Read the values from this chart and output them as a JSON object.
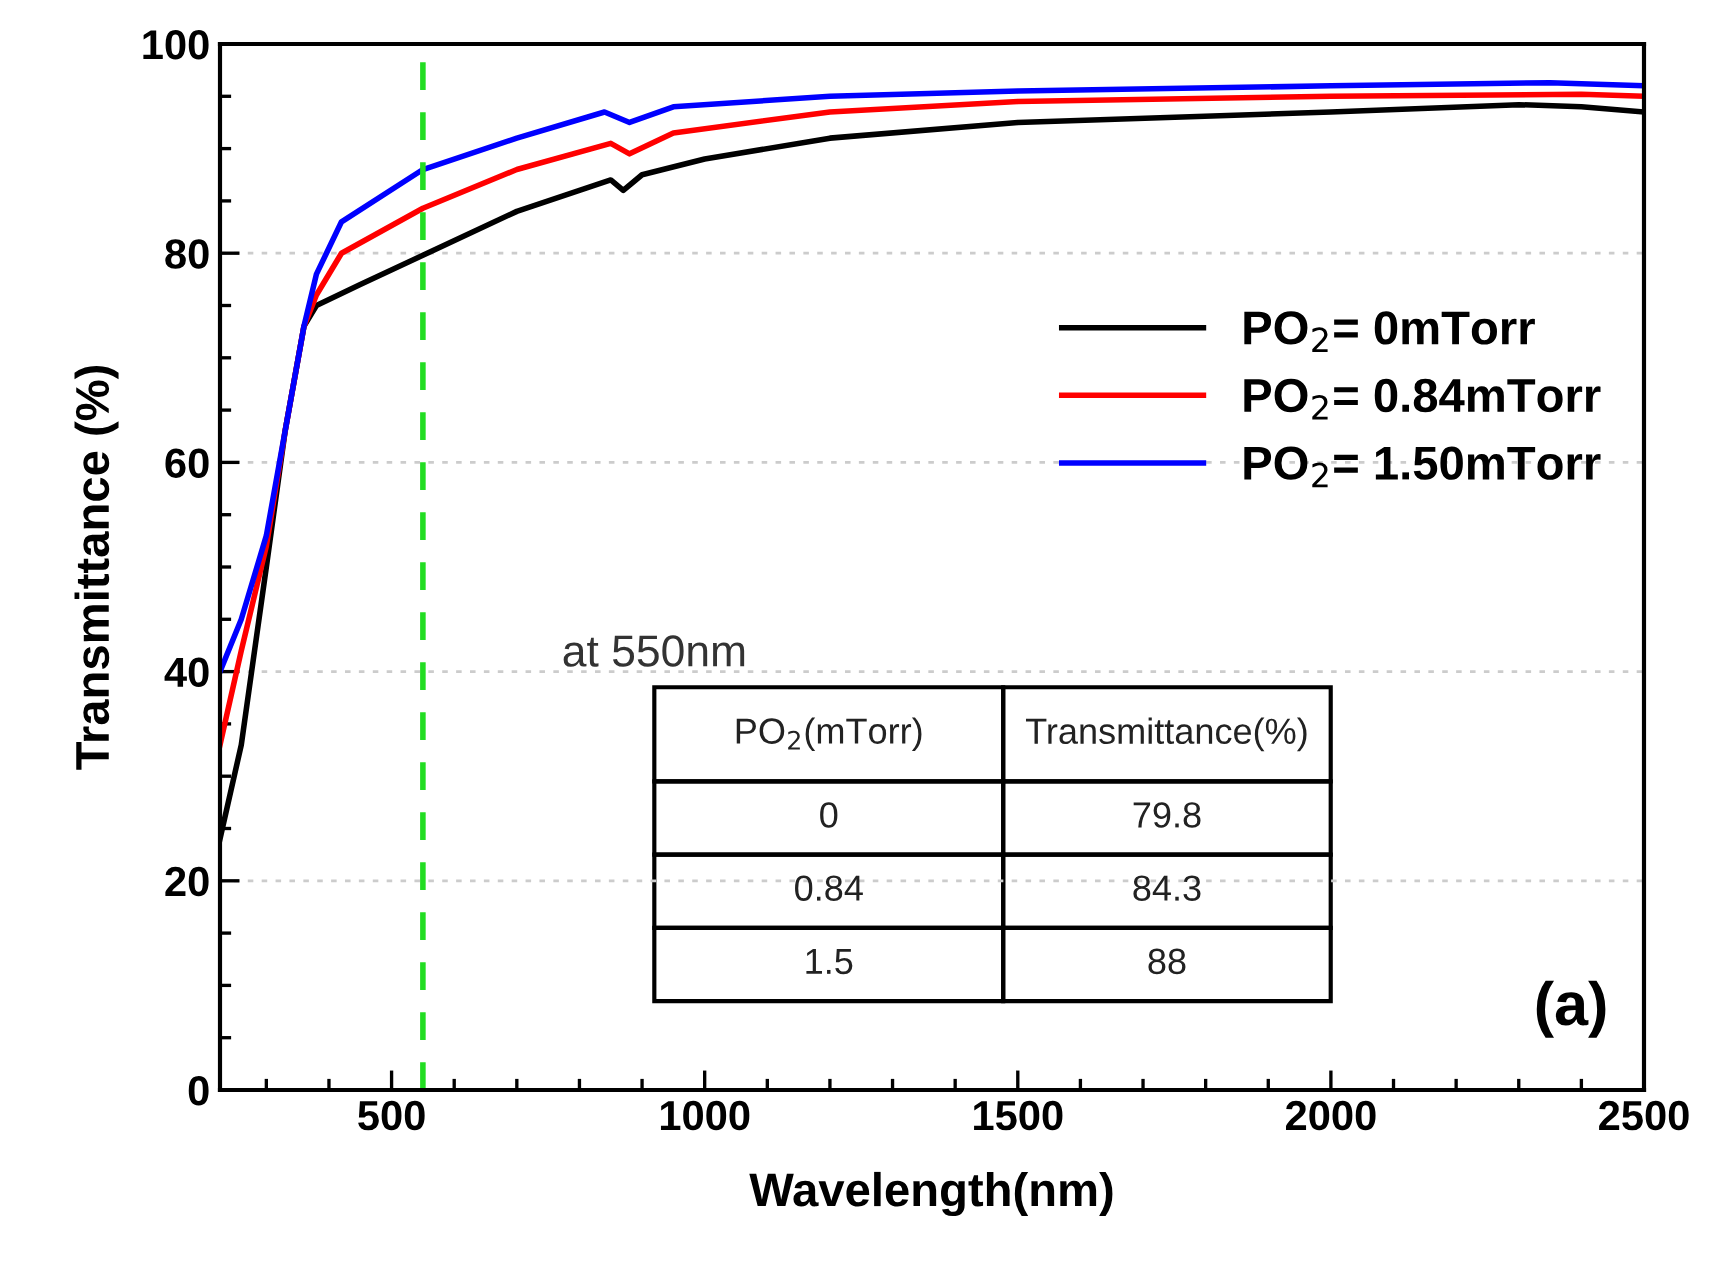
{
  "chart_data": {
    "type": "line",
    "xlabel": "Wavelength(nm)",
    "ylabel": "Transmittance (%)",
    "xlim": [
      226,
      2500
    ],
    "ylim": [
      0,
      100
    ],
    "xticks": [
      500,
      1000,
      1500,
      2000,
      2500
    ],
    "yticks": [
      0,
      20,
      40,
      60,
      80,
      100
    ],
    "grid": "y",
    "legend": "right",
    "line_style": "solid",
    "marker": "none",
    "series": [
      {
        "name": "PO$_{2}$= 0mTorr",
        "color": "#000000",
        "x": [
          226,
          260,
          300,
          330,
          360,
          380,
          450,
          550,
          700,
          850,
          870,
          900,
          1000,
          1200,
          1500,
          2000,
          2300,
          2400,
          2500
        ],
        "values": [
          24,
          33,
          50,
          63,
          73,
          75,
          77,
          79.8,
          84,
          87,
          86,
          87.5,
          89,
          91,
          92.5,
          93.5,
          94.2,
          94,
          93.5
        ]
      },
      {
        "name": "PO$_{2}$= 0.84mTorr",
        "color": "#ff0000",
        "x": [
          226,
          260,
          300,
          330,
          360,
          380,
          420,
          550,
          700,
          850,
          880,
          950,
          1200,
          1500,
          2000,
          2400,
          2500
        ],
        "values": [
          33,
          42,
          52,
          63,
          73,
          76,
          80,
          84.3,
          88,
          90.5,
          89.5,
          91.5,
          93.5,
          94.5,
          95,
          95.2,
          95
        ]
      },
      {
        "name": "PO$_{2}$= 1.50mTorr",
        "color": "#0000ff",
        "x": [
          226,
          260,
          300,
          330,
          360,
          380,
          420,
          550,
          700,
          840,
          880,
          950,
          1200,
          1500,
          2000,
          2350,
          2500
        ],
        "values": [
          40,
          45,
          53,
          63,
          73,
          78,
          83,
          88,
          91,
          93.5,
          92.5,
          94,
          95,
          95.5,
          96,
          96.3,
          96
        ]
      }
    ],
    "ref_lines": [
      {
        "axis": "x",
        "value": 550,
        "color": "#22dd22",
        "line_style": "dashed"
      }
    ],
    "annotations": [
      "at 550nm",
      "PO$_{2}$(mTorr)",
      "Transmittance(%)",
      "0",
      "79.8",
      "0.84",
      "84.3",
      "1.5",
      "88",
      "(a)"
    ]
  }
}
